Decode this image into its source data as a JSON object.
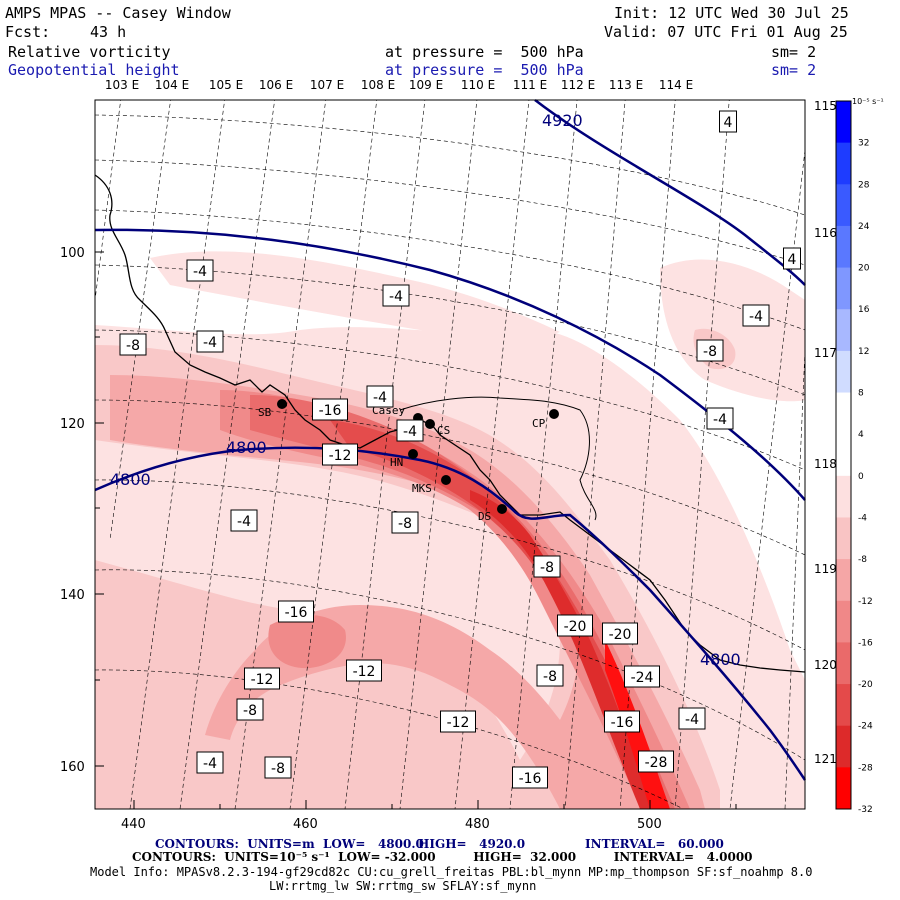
{
  "header": {
    "title": "AMPS MPAS -- Casey Window",
    "init": "Init: 12 UTC Wed 30 Jul 25",
    "fcst_label": "Fcst:",
    "fcst_value": "43 h",
    "valid": "Valid: 07 UTC Fri 01 Aug 25",
    "field1_name": "Relative vorticity",
    "field1_level": "at pressure =  500 hPa",
    "field1_sm": "sm= 2",
    "field2_name": "Geopotential height",
    "field2_level": "at pressure =  500 hPa",
    "field2_sm": "sm= 2"
  },
  "axes": {
    "x_ticks": [
      "440",
      "460",
      "480",
      "500"
    ],
    "y_ticks": [
      "100",
      "120",
      "140",
      "160"
    ],
    "lon_top": [
      "103 E",
      "104 E",
      "105 E",
      "106 E",
      "107 E",
      "108 E",
      "109 E",
      "110 E",
      "111 E",
      "112 E",
      "113 E",
      "114 E"
    ],
    "lon_right": [
      "115 E",
      "116 E",
      "117 E",
      "118 E",
      "119 E",
      "120 E",
      "121 E"
    ]
  },
  "colorbar": {
    "unit": "10⁻⁵ s⁻¹",
    "labels": [
      "32",
      "28",
      "24",
      "20",
      "16",
      "12",
      "8",
      "4",
      "0",
      "-4",
      "-8",
      "-12",
      "-16",
      "-20",
      "-24",
      "-28",
      "-32"
    ],
    "colors": [
      "#0000ff",
      "#1e3cff",
      "#3a5aff",
      "#5a78ff",
      "#7f97ff",
      "#a8b8ff",
      "#d0dcff",
      "#ffffff",
      "#ffffff",
      "#fde0e0",
      "#f9c4c4",
      "#f5a6a6",
      "#f08888",
      "#ea6a6a",
      "#e44a4a",
      "#dd2a2a",
      "#ff0000"
    ]
  },
  "stations": [
    "SB",
    "Casey",
    "CS",
    "HN",
    "MKS",
    "DS",
    "CP"
  ],
  "height_contours": [
    "4920",
    "4800",
    "4800",
    "4800"
  ],
  "vort_labels": [
    "4",
    "4",
    "-4",
    "-4",
    "-4",
    "-4",
    "-8",
    "-8",
    "-4",
    "-16",
    "-4",
    "-4",
    "-12",
    "-8",
    "-4",
    "-8",
    "-20",
    "-20",
    "-16",
    "-12",
    "-12",
    "-8",
    "-24",
    "-8",
    "-16",
    "-12",
    "-4",
    "-16",
    "-28",
    "-4",
    "-8"
  ],
  "footer": {
    "line1_left": "CONTOURS:  UNITS=m  LOW=   4800.0",
    "line1_mid": "HIGH=   4920.0",
    "line1_right": "INTERVAL=   60.000",
    "line2": "CONTOURS:  UNITS=10⁻⁵ s⁻¹  LOW= -32.000         HIGH=  32.000         INTERVAL=   4.0000",
    "line3": "Model Info: MPASv8.2.3-194-gf29cd82c CU:cu_grell_freitas PBL:bl_mynn MP:mp_thompson SF:sf_noahmp 8.0",
    "line4": "LW:rrtmg_lw SW:rrtmg_sw SFLAY:sf_mynn"
  }
}
